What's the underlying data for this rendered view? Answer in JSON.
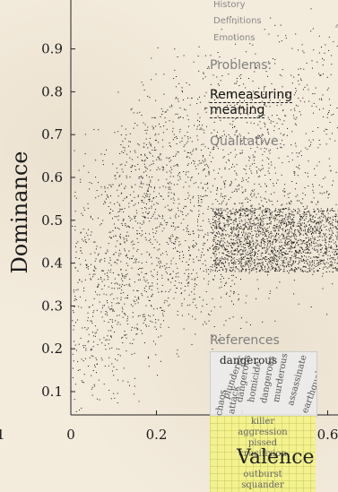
{
  "chart_data": {
    "type": "scatter",
    "xlabel": "Valence",
    "ylabel": "Dominance",
    "xlim": [
      0,
      0.7
    ],
    "ylim": [
      0.05,
      0.97
    ],
    "x_ticks": [
      {
        "value": 0,
        "label": "0"
      },
      {
        "value": 0.2,
        "label": "0.2"
      },
      {
        "value": 0.4,
        "label": "0.4"
      },
      {
        "value": 0.6,
        "label": "0.6"
      }
    ],
    "y_ticks": [
      {
        "value": 0.1,
        "label": "0.1"
      },
      {
        "value": 0.2,
        "label": "0.2"
      },
      {
        "value": 0.3,
        "label": "0.3"
      },
      {
        "value": 0.4,
        "label": "0.4"
      },
      {
        "value": 0.5,
        "label": "0.5"
      },
      {
        "value": 0.6,
        "label": "0.6"
      },
      {
        "value": 0.7,
        "label": "0.7"
      },
      {
        "value": 0.8,
        "label": "0.8"
      },
      {
        "value": 0.9,
        "label": "0.9"
      }
    ],
    "left_cut_tick": "1",
    "cluster_points": [
      {
        "x": 0.04,
        "y": 0.15
      },
      {
        "x": 0.06,
        "y": 0.32
      },
      {
        "x": 0.08,
        "y": 0.45
      },
      {
        "x": 0.1,
        "y": 0.28
      },
      {
        "x": 0.12,
        "y": 0.55
      },
      {
        "x": 0.14,
        "y": 0.4
      },
      {
        "x": 0.16,
        "y": 0.62
      },
      {
        "x": 0.18,
        "y": 0.33
      },
      {
        "x": 0.2,
        "y": 0.5
      },
      {
        "x": 0.22,
        "y": 0.68
      },
      {
        "x": 0.25,
        "y": 0.42
      },
      {
        "x": 0.28,
        "y": 0.58
      },
      {
        "x": 0.3,
        "y": 0.75
      },
      {
        "x": 0.32,
        "y": 0.36
      },
      {
        "x": 0.35,
        "y": 0.52
      },
      {
        "x": 0.38,
        "y": 0.66
      },
      {
        "x": 0.4,
        "y": 0.45
      },
      {
        "x": 0.43,
        "y": 0.8
      },
      {
        "x": 0.46,
        "y": 0.55
      },
      {
        "x": 0.5,
        "y": 0.7
      },
      {
        "x": 0.55,
        "y": 0.48
      },
      {
        "x": 0.6,
        "y": 0.85
      },
      {
        "x": 0.65,
        "y": 0.62
      }
    ],
    "dense_band": {
      "y": [
        0.38,
        0.53
      ],
      "x": [
        0.33,
        0.7
      ]
    },
    "point_color": "#111111",
    "grid": false
  },
  "toc": {
    "small_items": [
      "History",
      "Definitions",
      "Emotions"
    ],
    "items": [
      {
        "label": "Problems:",
        "active": false
      },
      {
        "label": "Remeasuring meaning",
        "active": true
      },
      {
        "label": "Qualitative",
        "active": false
      }
    ],
    "bottom_item": "References"
  },
  "wordcloud_top": {
    "title": "dangerous",
    "rotated_words": [
      "plunderer",
      "dangerous",
      "homicide",
      "dangerous",
      "murderous",
      "assassinate",
      "earthquake",
      "chaos",
      "attack"
    ]
  },
  "wordcloud_bottom": {
    "words": [
      "killer",
      "aggression",
      "pissed",
      "crucifixion",
      "outburst",
      "squander"
    ]
  }
}
